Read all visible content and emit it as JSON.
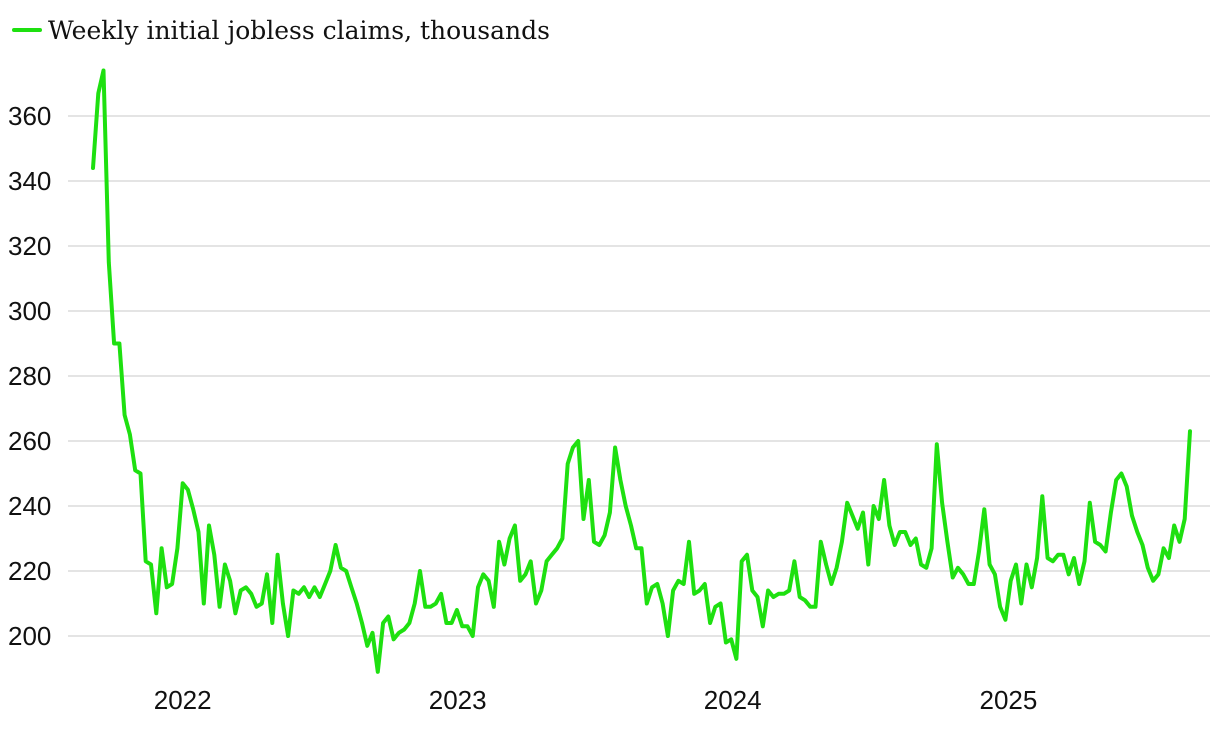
{
  "chart_data": {
    "type": "line",
    "legend": {
      "label": "Weekly initial jobless claims, thousands",
      "placement": "top-left"
    },
    "colors": {
      "series": "#1ee010",
      "grid": "#dcdcdc",
      "text": "#111111"
    },
    "grid": true,
    "ylim": [
      187,
      375
    ],
    "y_ticks": [
      200,
      220,
      240,
      260,
      280,
      300,
      320,
      340,
      360
    ],
    "x_ticks": [
      {
        "label": "2022",
        "value": "2022-01-01"
      },
      {
        "label": "2023",
        "value": "2023-01-01"
      },
      {
        "label": "2024",
        "value": "2024-01-01"
      },
      {
        "label": "2025",
        "value": "2025-01-01"
      }
    ],
    "xlim": [
      "2021-09-04",
      "2025-09-06"
    ],
    "series": [
      {
        "name": "Weekly initial jobless claims, thousands",
        "start_date": "2021-09-04",
        "interval_days": 7,
        "values": [
          344,
          367,
          374,
          315,
          290,
          290,
          268,
          262,
          251,
          250,
          223,
          222,
          207,
          227,
          215,
          216,
          227,
          247,
          245,
          239,
          232,
          210,
          234,
          225,
          209,
          222,
          217,
          207,
          214,
          215,
          213,
          209,
          210,
          219,
          204,
          225,
          210,
          200,
          214,
          213,
          215,
          212,
          215,
          212,
          216,
          220,
          228,
          221,
          220,
          215,
          210,
          204,
          197,
          201,
          189,
          204,
          206,
          199,
          201,
          202,
          204,
          210,
          220,
          209,
          209,
          210,
          213,
          204,
          204,
          208,
          203,
          203,
          200,
          215,
          219,
          217,
          209,
          229,
          222,
          230,
          234,
          217,
          219,
          223,
          210,
          214,
          223,
          225,
          227,
          230,
          253,
          258,
          260,
          236,
          248,
          229,
          228,
          231,
          238,
          258,
          248,
          240,
          234,
          227,
          227,
          210,
          215,
          216,
          210,
          200,
          214,
          217,
          216,
          229,
          213,
          214,
          216,
          204,
          209,
          210,
          198,
          199,
          193,
          223,
          225,
          214,
          212,
          203,
          214,
          212,
          213,
          213,
          214,
          223,
          212,
          211,
          209,
          209,
          229,
          222,
          216,
          221,
          229,
          241,
          237,
          233,
          238,
          222,
          240,
          236,
          248,
          234,
          228,
          232,
          232,
          228,
          230,
          222,
          221,
          227,
          259,
          241,
          229,
          218,
          221,
          219,
          216,
          216,
          226,
          239,
          222,
          219,
          209,
          205,
          217,
          222,
          210,
          222,
          215,
          224,
          243,
          224,
          223,
          225,
          225,
          219,
          224,
          216,
          223,
          241,
          229,
          228,
          226,
          238,
          248,
          250,
          246,
          237,
          232,
          228,
          221,
          217,
          219,
          227,
          224,
          234,
          229,
          236,
          263
        ]
      }
    ]
  }
}
